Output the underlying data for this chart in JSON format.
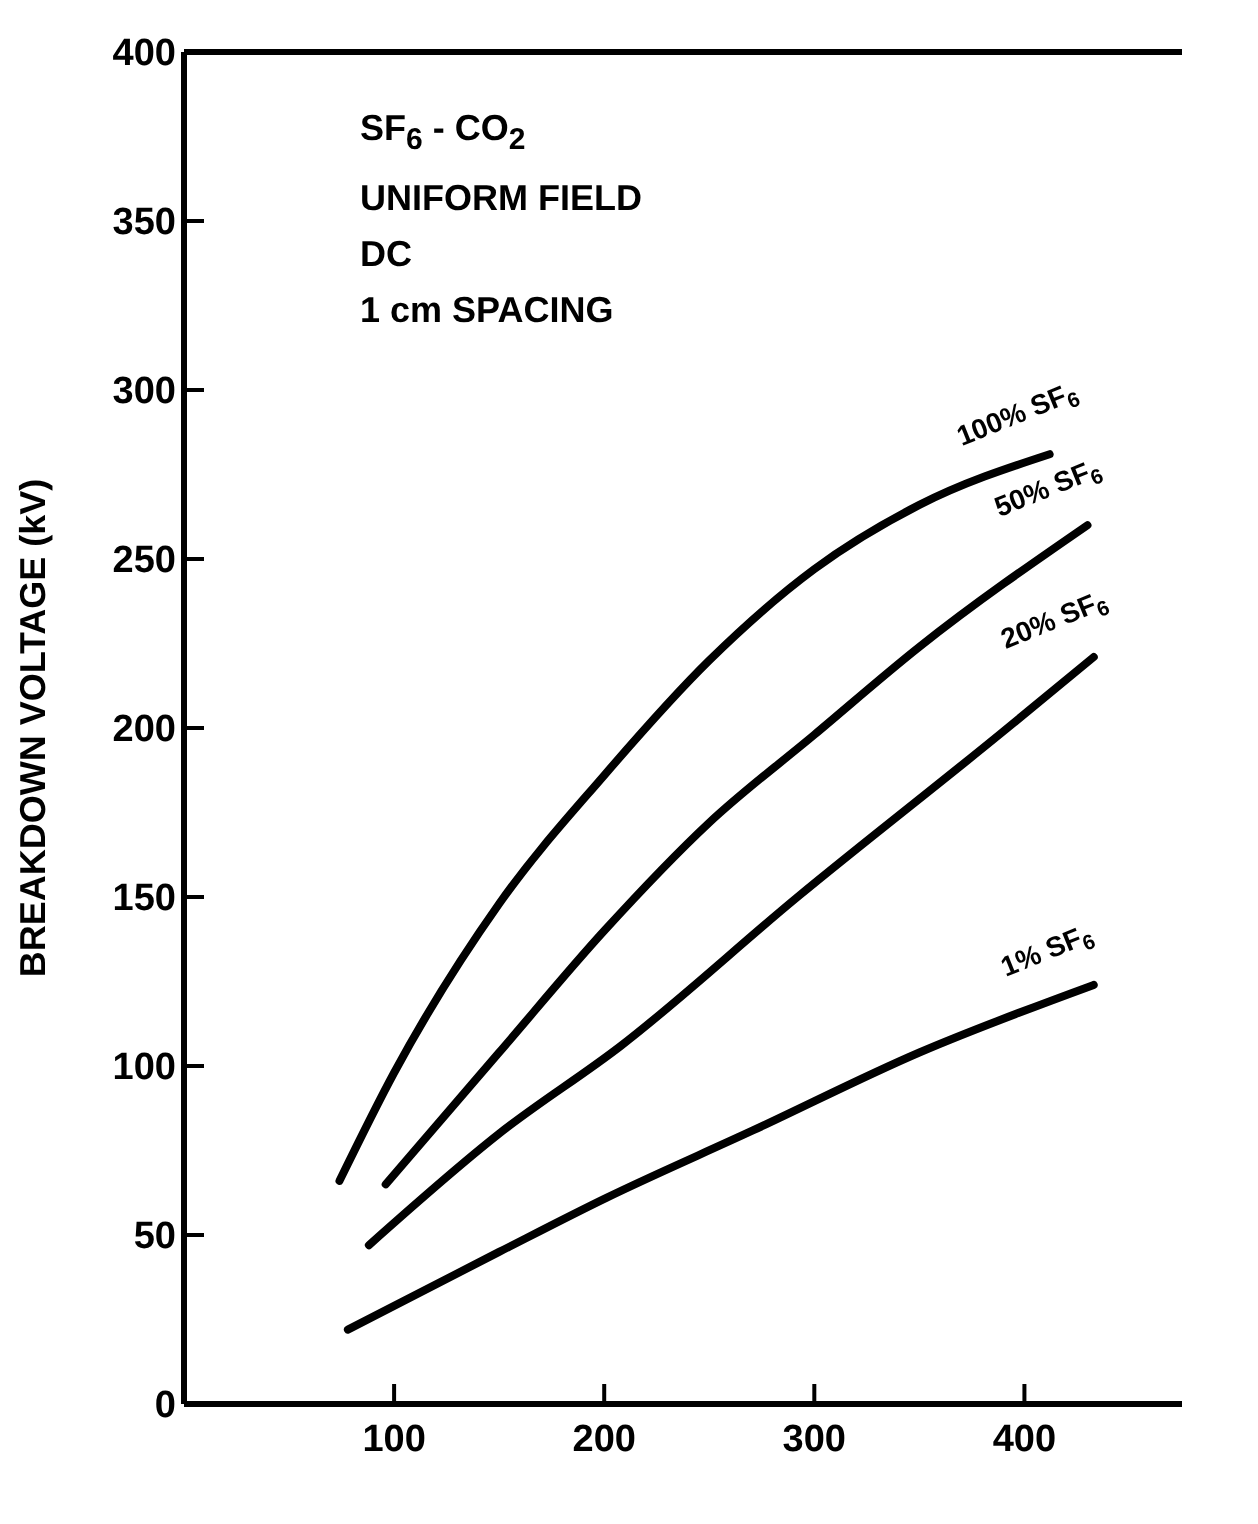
{
  "chart_data": {
    "type": "line",
    "ylabel": "BREAKDOWN VOLTAGE (kV)",
    "annotations": [
      "SF$_{6}$ - CO$_{2}$",
      "UNIFORM FIELD",
      "DC",
      "1 cm SPACING"
    ],
    "xlim": [
      0,
      475
    ],
    "xticks": [
      100,
      200,
      300,
      400
    ],
    "ylim": [
      0,
      400
    ],
    "yticks": [
      0,
      50,
      100,
      150,
      200,
      250,
      300,
      350,
      400
    ],
    "grid": false,
    "legend": false,
    "marker": "none",
    "line_style": "solid",
    "series": [
      {
        "name": "100% SF$_{6}$",
        "color": "#000000",
        "x": [
          74,
          100,
          150,
          200,
          250,
          300,
          350,
          412
        ],
        "values": [
          66,
          98,
          148,
          186,
          220,
          247,
          266,
          281
        ]
      },
      {
        "name": "50% SF$_{6}$",
        "color": "#000000",
        "x": [
          96,
          150,
          200,
          250,
          300,
          350,
          430
        ],
        "values": [
          65,
          104,
          140,
          172,
          198,
          224,
          260
        ]
      },
      {
        "name": "20% SF$_{6}$",
        "color": "#000000",
        "x": [
          88,
          150,
          208,
          292,
          388,
          433
        ],
        "values": [
          47,
          80,
          106,
          150,
          198,
          221
        ]
      },
      {
        "name": "1% SF$_{6}$",
        "color": "#000000",
        "x": [
          78,
          150,
          201,
          271,
          350,
          433
        ],
        "values": [
          22,
          45,
          61,
          81,
          104,
          124
        ]
      }
    ]
  }
}
